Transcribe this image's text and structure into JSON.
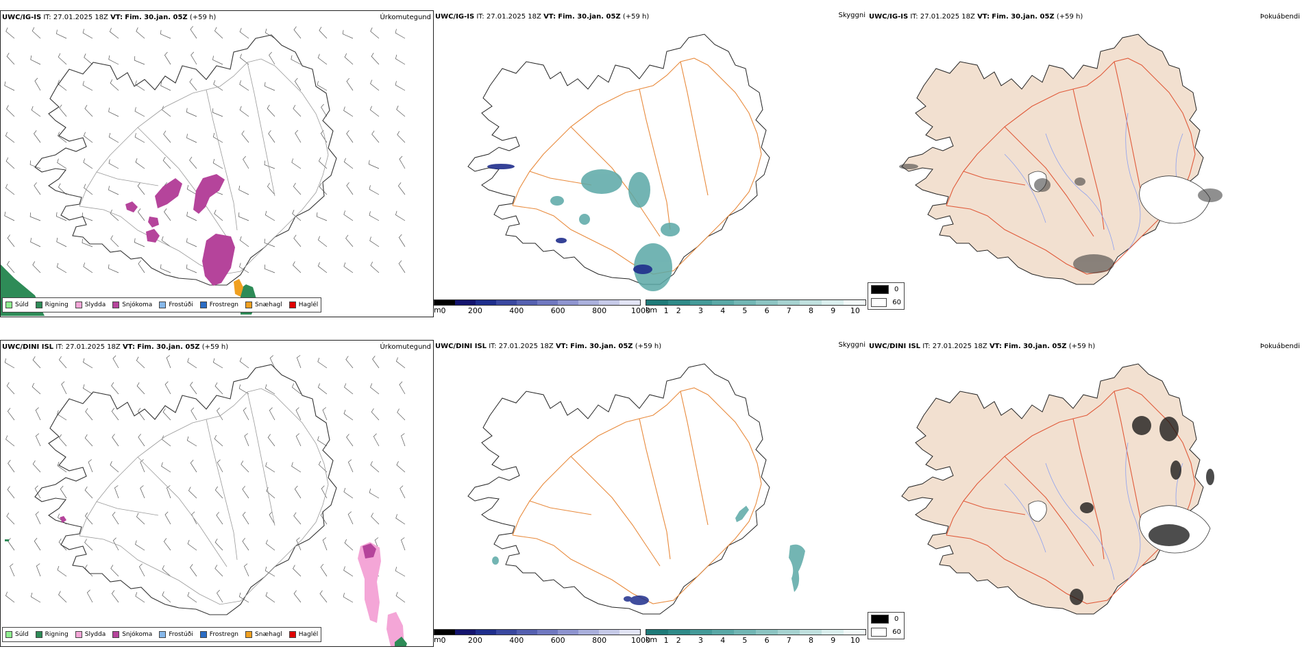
{
  "rows": [
    {
      "model": "UWC/IG-IS",
      "it_label": "IT:",
      "it_value": "27.01.2025 18Z",
      "vt_label": "VT:",
      "vt_value": "Fim. 30.jan. 05Z",
      "lead": "(+59 h)"
    },
    {
      "model": "UWC/DINI ISL",
      "it_label": "IT:",
      "it_value": "27.01.2025 18Z",
      "vt_label": "VT:",
      "vt_value": "Fim. 30.jan. 05Z",
      "lead": "(+59 h)"
    }
  ],
  "panel_names": {
    "precip": "Úrkomutegund",
    "visibility": "Skyggni",
    "fog": "Þokuábendi"
  },
  "precip_legend": [
    {
      "label": "Súld",
      "color": "#90ee90"
    },
    {
      "label": "Rigning",
      "color": "#2e8b57"
    },
    {
      "label": "Slydda",
      "color": "#f4a6d7"
    },
    {
      "label": "Snjókoma",
      "color": "#b5449b"
    },
    {
      "label": "Frostúði",
      "color": "#87b8ea"
    },
    {
      "label": "Frostregn",
      "color": "#2b6cc4"
    },
    {
      "label": "Snæhagl",
      "color": "#f0a020"
    },
    {
      "label": "Haglél",
      "color": "#e00000"
    }
  ],
  "ceiling_bar": {
    "unit": "m",
    "ticks": [
      "0",
      "200",
      "400",
      "600",
      "800",
      "1000"
    ],
    "colors": [
      "#000000",
      "#14146e",
      "#1f2e8c",
      "#3a48a0",
      "#5560b0",
      "#7078c0",
      "#8e94cf",
      "#aab0dc",
      "#c6cae8",
      "#e2e4f4"
    ]
  },
  "vis_bar": {
    "unit": "km",
    "ticks": [
      "1",
      "2",
      "3",
      "4",
      "5",
      "6",
      "7",
      "8",
      "9",
      "10"
    ],
    "colors": [
      "#1f7a78",
      "#2f8a88",
      "#449a98",
      "#5aa8a6",
      "#72b6b4",
      "#8cc4c2",
      "#a6d2d0",
      "#c0e0de",
      "#daeeed",
      "#f2f9f9"
    ]
  },
  "fog_legend": [
    {
      "label": "0",
      "color": "#000000"
    },
    {
      "label": "60",
      "color": "#ffffff"
    }
  ],
  "colors": {
    "coast": "#333333",
    "roads": "#e88a3c",
    "fog_land": "#f2e0d0",
    "fog_roads": "#e05a3a",
    "rivers": "#8da0f0"
  }
}
